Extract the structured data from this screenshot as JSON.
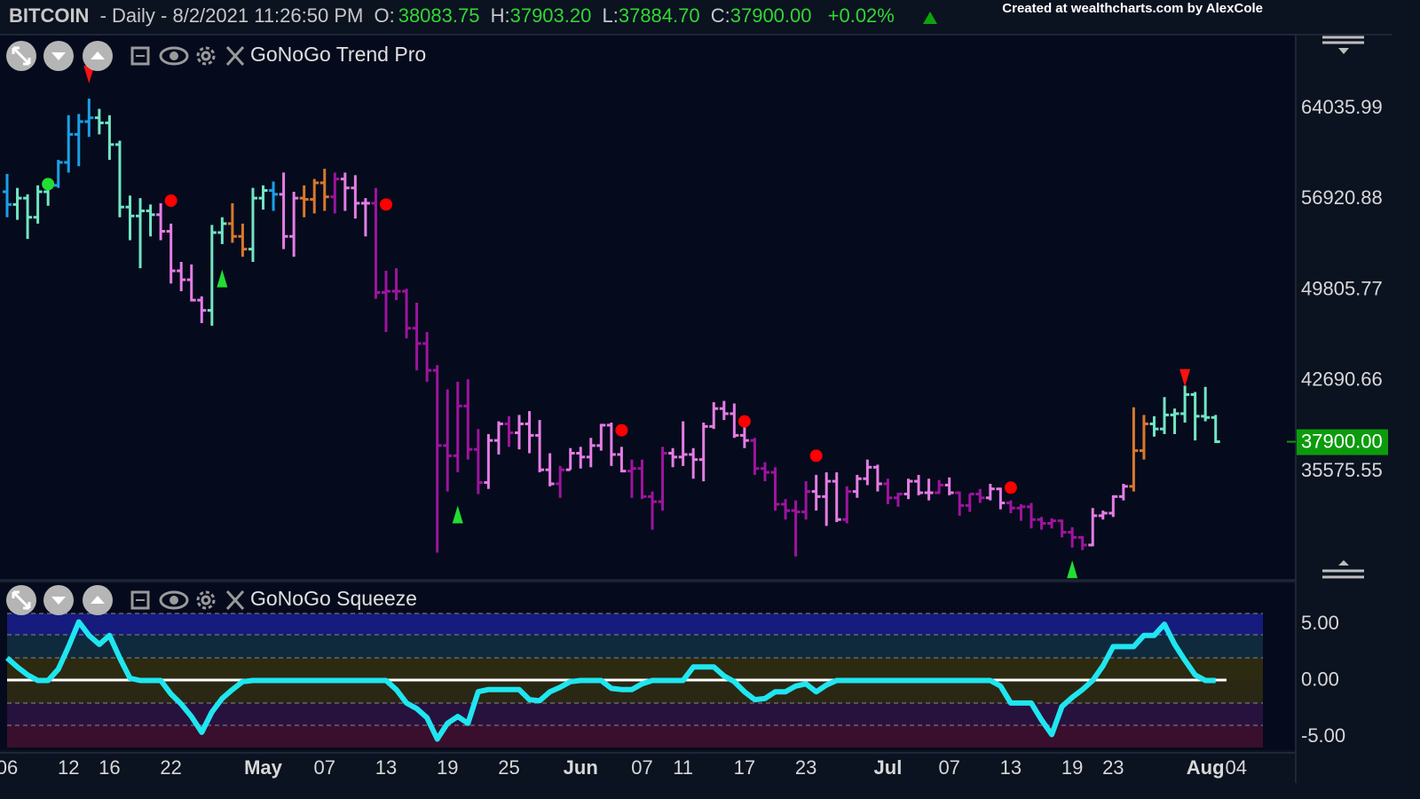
{
  "header": {
    "symbol": "BITCOIN",
    "info": "- Daily - 8/2/2021 11:26:50 PM",
    "quotes": [
      {
        "label": "O:",
        "value": "38083.75"
      },
      {
        "label": "H:",
        "value": "37903.20"
      },
      {
        "label": "L:",
        "value": "37884.70"
      },
      {
        "label": "C:",
        "value": "37900.00"
      }
    ],
    "change": "+0.02%",
    "credit": "Created at wealthcharts.com by AlexCole"
  },
  "chart_data": [
    {
      "type": "ohlc",
      "title": "GoNoGo Trend Pro",
      "categories": [
        "06",
        null,
        null,
        null,
        null,
        null,
        "12",
        null,
        null,
        null,
        "16",
        null,
        null,
        null,
        null,
        null,
        "22",
        null,
        null,
        null,
        null,
        null,
        null,
        null,
        null,
        "May",
        null,
        null,
        null,
        null,
        null,
        "07",
        null,
        null,
        null,
        null,
        null,
        "13",
        null,
        null,
        null,
        null,
        null,
        "19",
        null,
        null,
        null,
        null,
        null,
        "25",
        null,
        null,
        null,
        null,
        null,
        null,
        "Jun",
        null,
        null,
        null,
        null,
        null,
        "07",
        null,
        null,
        null,
        "11",
        null,
        null,
        null,
        null,
        null,
        "17",
        null,
        null,
        null,
        null,
        null,
        "23",
        null,
        null,
        null,
        null,
        null,
        null,
        null,
        "Jul",
        null,
        null,
        null,
        null,
        null,
        "07",
        null,
        null,
        null,
        null,
        null,
        "13",
        null,
        null,
        null,
        null,
        null,
        "19",
        null,
        null,
        null,
        "23",
        null,
        null,
        null,
        null,
        null,
        null,
        null,
        null,
        "Aug",
        null,
        null,
        "04"
      ],
      "open": [
        57500,
        56500,
        57000,
        55500,
        57500,
        58000,
        59800,
        62000,
        63000,
        63300,
        62900,
        61200,
        56300,
        55600,
        56000,
        55700,
        54400,
        51300,
        50600,
        49000,
        48200,
        54300,
        55000,
        54000,
        53000,
        57000,
        57600,
        57300,
        54000,
        57000,
        56900,
        58200,
        57100,
        58500,
        57800,
        56600,
        56600,
        49600,
        49700,
        49700,
        46800,
        45600,
        43500,
        37600,
        36800,
        40700,
        37300,
        34700,
        38000,
        39300,
        38600,
        39300,
        38400,
        35700,
        34600,
        35700,
        37000,
        36700,
        37600,
        39200,
        36900,
        35600,
        35800,
        33600,
        33200,
        37000,
        36700,
        36900,
        36500,
        39100,
        40500,
        40100,
        38400,
        38000,
        35800,
        35500,
        33000,
        32500,
        32400,
        34000,
        33600,
        34800,
        31800,
        34000,
        35000,
        35900,
        34600,
        33500,
        33800,
        34800,
        33900,
        33900,
        34500,
        33900,
        32900,
        33800,
        33500,
        34200,
        33100,
        32700,
        32800,
        31800,
        31500,
        31700,
        30800,
        30400,
        29800,
        32100,
        32300,
        33600,
        34400,
        37200,
        39300,
        38900,
        40000,
        40100,
        41600,
        39900,
        39800,
        null,
        null
      ],
      "high": [
        58900,
        57800,
        57300,
        58000,
        58500,
        60000,
        63500,
        63600,
        64800,
        64000,
        63500,
        61500,
        57200,
        57000,
        56500,
        56600,
        55000,
        52000,
        51800,
        49300,
        54900,
        55500,
        56600,
        55000,
        57800,
        58000,
        58300,
        59000,
        57500,
        58000,
        58500,
        59300,
        59000,
        59000,
        58800,
        57000,
        57800,
        51300,
        51500,
        49900,
        48800,
        46500,
        43900,
        42000,
        42600,
        42800,
        38900,
        38500,
        39500,
        39900,
        40000,
        40300,
        39600,
        37000,
        36000,
        37400,
        37500,
        38200,
        39300,
        39400,
        37500,
        36500,
        36500,
        34000,
        37500,
        37400,
        39500,
        37400,
        39400,
        41000,
        41100,
        40900,
        39500,
        38200,
        36300,
        35900,
        33400,
        33300,
        34800,
        35300,
        35500,
        35500,
        34400,
        35300,
        36500,
        36100,
        35000,
        33900,
        35000,
        35300,
        35000,
        34900,
        35100,
        34000,
        33800,
        34200,
        34600,
        34300,
        33300,
        33000,
        33100,
        32000,
        31900,
        31800,
        31200,
        30500,
        32700,
        32500,
        33700,
        34600,
        40600,
        40000,
        39900,
        41400,
        40500,
        42300,
        41800,
        42200,
        40000,
        null,
        null
      ],
      "low": [
        55500,
        55300,
        53800,
        55000,
        56400,
        57800,
        59000,
        59500,
        61800,
        62000,
        60000,
        55500,
        53700,
        51500,
        54000,
        53700,
        50300,
        49700,
        48900,
        47200,
        47000,
        53400,
        53500,
        52400,
        52000,
        56100,
        56000,
        53000,
        52400,
        55500,
        55800,
        56000,
        55800,
        56000,
        55400,
        54000,
        49100,
        46500,
        49000,
        46000,
        43500,
        42600,
        29200,
        34000,
        35500,
        36500,
        33800,
        34200,
        36900,
        37500,
        37300,
        37000,
        35500,
        34400,
        33500,
        35700,
        35800,
        35900,
        37200,
        36000,
        35500,
        33500,
        33400,
        31000,
        32500,
        35900,
        36000,
        35000,
        34800,
        38900,
        39600,
        38200,
        37400,
        35300,
        34800,
        32500,
        31800,
        28900,
        31800,
        32500,
        31300,
        31600,
        31500,
        33500,
        34500,
        34000,
        33000,
        32800,
        33400,
        33700,
        33300,
        33800,
        33700,
        32100,
        32400,
        33100,
        33300,
        32600,
        32300,
        31700,
        31100,
        31000,
        31100,
        30400,
        29600,
        29400,
        29700,
        31800,
        32000,
        33300,
        34000,
        36500,
        38300,
        38500,
        38500,
        39400,
        38000,
        39500,
        37800,
        null,
        null
      ],
      "close": [
        56500,
        57000,
        55500,
        57500,
        58000,
        59800,
        62000,
        63000,
        63300,
        62900,
        61200,
        56300,
        55600,
        56000,
        55700,
        54400,
        51300,
        50600,
        49000,
        48200,
        54300,
        55000,
        54000,
        53000,
        57000,
        57600,
        57300,
        54000,
        57000,
        56900,
        58200,
        57100,
        58500,
        57800,
        56600,
        56600,
        49600,
        49700,
        49700,
        46800,
        45600,
        43500,
        37600,
        36800,
        40700,
        37300,
        34700,
        38000,
        39300,
        38600,
        39300,
        38400,
        35700,
        34600,
        35700,
        37000,
        36700,
        37600,
        39200,
        36900,
        35600,
        35800,
        33600,
        33200,
        37000,
        36700,
        36900,
        36500,
        39100,
        40500,
        40100,
        38400,
        38000,
        35800,
        35500,
        33000,
        32500,
        32400,
        34000,
        33600,
        34800,
        31800,
        34000,
        35000,
        35900,
        34600,
        33500,
        33800,
        34800,
        33900,
        33900,
        34500,
        33900,
        32900,
        33800,
        33500,
        34200,
        33100,
        32700,
        32800,
        31800,
        31500,
        31700,
        30800,
        30400,
        29800,
        32100,
        32300,
        33600,
        34400,
        37200,
        39300,
        38900,
        40000,
        40100,
        41600,
        39900,
        39800,
        37900,
        null,
        null
      ],
      "colors": [
        "#1aa0e8",
        "#72e5c4",
        "#72e5c4",
        "#72e5c4",
        "#72e5c4",
        "#1aa0e8",
        "#1aa0e8",
        "#1aa0e8",
        "#1aa0e8",
        "#72e5c4",
        "#72e5c4",
        "#72e5c4",
        "#72e5c4",
        "#72e5c4",
        "#72e5c4",
        "#e47de4",
        "#e47de4",
        "#e47de4",
        "#e47de4",
        "#e47de4",
        "#72e5c4",
        "#72e5c4",
        "#d9782c",
        "#d9782c",
        "#72e5c4",
        "#72e5c4",
        "#1aa0e8",
        "#e47de4",
        "#e47de4",
        "#d9782c",
        "#d9782c",
        "#d9782c",
        "#9e149e",
        "#e47de4",
        "#e47de4",
        "#e47de4",
        "#9e149e",
        "#9e149e",
        "#9e149e",
        "#9e149e",
        "#9e149e",
        "#9e149e",
        "#9e149e",
        "#9e149e",
        "#9e149e",
        "#9e149e",
        "#9e149e",
        "#e47de4",
        "#e47de4",
        "#9e149e",
        "#e47de4",
        "#e47de4",
        "#e47de4",
        "#e47de4",
        "#9e149e",
        "#e47de4",
        "#e47de4",
        "#e47de4",
        "#e47de4",
        "#e47de4",
        "#e47de4",
        "#9e149e",
        "#9e149e",
        "#9e149e",
        "#9e149e",
        "#e47de4",
        "#e47de4",
        "#e47de4",
        "#e47de4",
        "#e47de4",
        "#e47de4",
        "#e47de4",
        "#e47de4",
        "#9e149e",
        "#9e149e",
        "#9e149e",
        "#9e149e",
        "#9e149e",
        "#9e149e",
        "#e47de4",
        "#e47de4",
        "#e47de4",
        "#9e149e",
        "#e47de4",
        "#e47de4",
        "#e47de4",
        "#9e149e",
        "#9e149e",
        "#e47de4",
        "#e47de4",
        "#e47de4",
        "#9e149e",
        "#e47de4",
        "#9e149e",
        "#9e149e",
        "#9e149e",
        "#e47de4",
        "#e47de4",
        "#9e149e",
        "#9e149e",
        "#9e149e",
        "#9e149e",
        "#9e149e",
        "#9e149e",
        "#9e149e",
        "#9e149e",
        "#e47de4",
        "#e47de4",
        "#e47de4",
        "#e47de4",
        "#d9782c",
        "#d9782c",
        "#72e5c4",
        "#72e5c4",
        "#72e5c4",
        "#72e5c4",
        "#72e5c4",
        "#72e5c4",
        "#72e5c4",
        null,
        null
      ],
      "signals": [
        {
          "index": 4,
          "price": 58100,
          "shape": "circle",
          "color": "#22dd33"
        },
        {
          "index": 16,
          "price": 56800,
          "shape": "circle",
          "color": "#ff0000"
        },
        {
          "index": 37,
          "price": 56500,
          "shape": "circle",
          "color": "#ff0000"
        },
        {
          "index": 60,
          "price": 38800,
          "shape": "circle",
          "color": "#ff0000"
        },
        {
          "index": 72,
          "price": 39500,
          "shape": "circle",
          "color": "#ff0000"
        },
        {
          "index": 79,
          "price": 36800,
          "shape": "circle",
          "color": "#ff0000"
        },
        {
          "index": 98,
          "price": 34300,
          "shape": "circle",
          "color": "#ff0000"
        },
        {
          "index": 21,
          "price": 50700,
          "shape": "up",
          "color": "#22dd33"
        },
        {
          "index": 44,
          "price": 32200,
          "shape": "up",
          "color": "#22dd33"
        },
        {
          "index": 104,
          "price": 27900,
          "shape": "up",
          "color": "#22dd33"
        },
        {
          "index": 8,
          "price": 66700,
          "shape": "down",
          "color": "#ff1111"
        },
        {
          "index": 115,
          "price": 42900,
          "shape": "down",
          "color": "#ff1111"
        }
      ],
      "ylim": [
        27150,
        69750
      ],
      "yticks": [
        64035.99,
        56920.88,
        49805.77,
        42690.66,
        {
          "value": 35575.55,
          "label": "35575.55"
        }
      ],
      "last_price": {
        "value": 37900,
        "label": "37900.00"
      }
    },
    {
      "type": "line",
      "title": "GoNoGo Squeeze",
      "color": "#1fe6f0",
      "values": [
        2.0,
        1.2,
        0.5,
        0,
        0,
        1.0,
        3.0,
        5.2,
        4.0,
        3.2,
        4.0,
        2.0,
        0.2,
        0,
        0,
        0,
        -1.2,
        -2.1,
        -3.2,
        -4.6,
        -2.8,
        -1.6,
        -0.8,
        -0.1,
        0,
        0,
        0,
        0,
        0,
        0,
        0,
        0,
        0,
        0,
        0,
        0,
        0,
        0,
        -0.8,
        -2.0,
        -2.5,
        -3.3,
        -5.2,
        -3.8,
        -3.2,
        -3.8,
        -1.0,
        -0.8,
        -0.8,
        -0.8,
        -0.8,
        -1.7,
        -1.8,
        -1.0,
        -0.6,
        -0.1,
        0,
        0,
        0,
        -0.7,
        -0.8,
        -0.8,
        -0.3,
        0,
        0,
        0,
        0,
        1.2,
        1.2,
        1.2,
        0.4,
        -0.1,
        -1.0,
        -1.7,
        -1.6,
        -1.0,
        -1.0,
        -0.5,
        -0.3,
        -1.0,
        -0.4,
        0,
        0,
        0,
        0,
        0,
        0,
        0,
        0,
        0,
        0,
        0,
        0,
        0,
        0,
        0,
        0,
        -0.5,
        -2.0,
        -2.0,
        -2.0,
        -3.5,
        -4.8,
        -2.3,
        -1.5,
        -0.8,
        0,
        1.3,
        3.0,
        3.0,
        3.0,
        4.0,
        4.0,
        5.0,
        3.2,
        1.8,
        0.5,
        0,
        0,
        null,
        null
      ],
      "ylim": [
        -5.95,
        5.95
      ],
      "yticks": [
        {
          "value": 5,
          "label": "5.00"
        },
        {
          "value": 0,
          "label": "0.00"
        },
        {
          "value": -5,
          "label": "-5.00"
        }
      ]
    }
  ]
}
